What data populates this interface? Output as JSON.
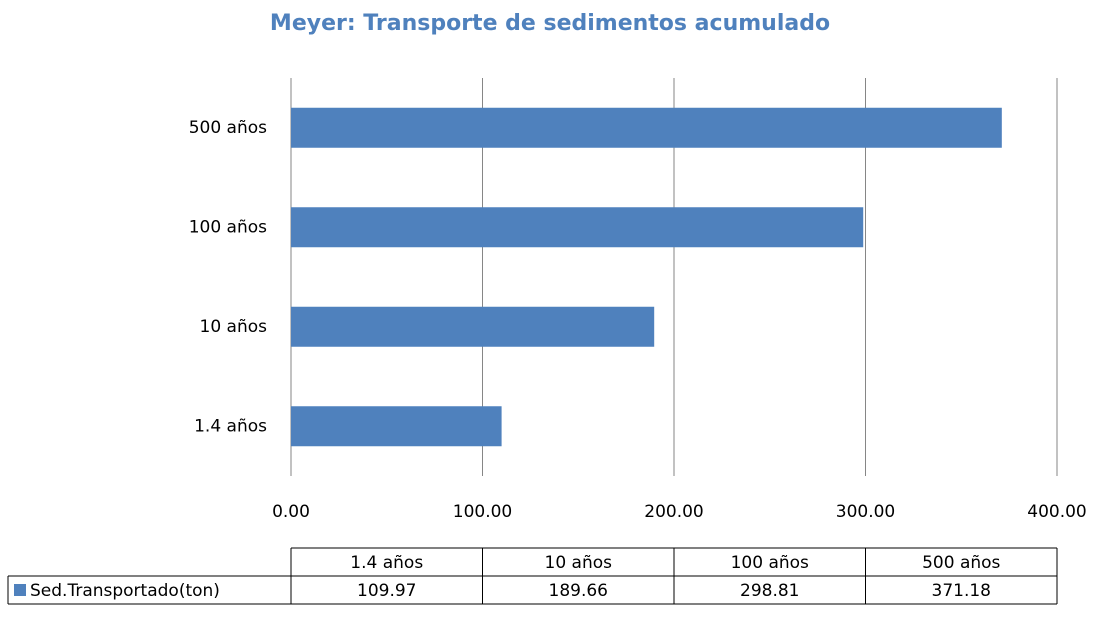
{
  "chart_data": {
    "type": "barh",
    "title": "Meyer: Transporte de sedimentos acumulado",
    "categories": [
      "1.4 años",
      "10 años",
      "100 años",
      "500 años"
    ],
    "series": [
      {
        "name": "Sed.Transportado(ton)",
        "color": "#4f81bd",
        "values": [
          109.97,
          189.66,
          298.81,
          371.18
        ]
      }
    ],
    "xlim": [
      0,
      400
    ],
    "xticks": [
      {
        "value": 0,
        "label": "0.00"
      },
      {
        "value": 100,
        "label": "100.00"
      },
      {
        "value": 200,
        "label": "200.00"
      },
      {
        "value": 300,
        "label": "300.00"
      },
      {
        "value": 400,
        "label": "400.00"
      }
    ],
    "grid": true,
    "data_table": true
  }
}
